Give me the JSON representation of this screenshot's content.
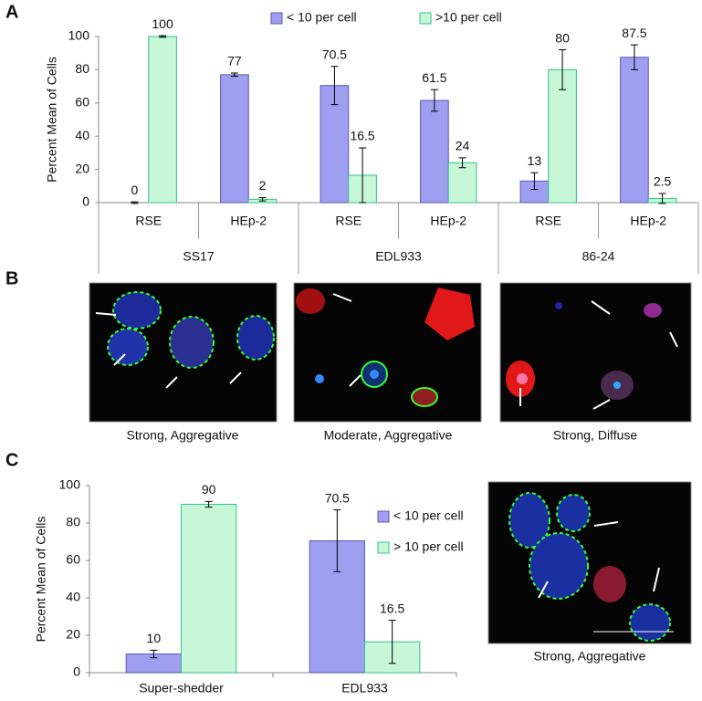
{
  "panel_labels": [
    "A",
    "B",
    "C"
  ],
  "image_captions": [
    "Strong, Aggregative",
    "Moderate, Aggregative",
    "Strong, Diffuse",
    "Strong, Aggregative"
  ],
  "chart_data": [
    {
      "type": "bar",
      "y_label": "Percent Mean of Cells",
      "categories": [
        "RSE",
        "HEp-2",
        "RSE",
        "HEp-2",
        "RSE",
        "HEp-2"
      ],
      "groups": [
        "SS17",
        "EDL933",
        "86-24"
      ],
      "series": [
        {
          "name": "< 10 per cell",
          "color": "#9f9ff2",
          "edge_color": "#5a5ab0",
          "values": [
            0,
            77,
            70.5,
            61.5,
            13,
            87.5
          ],
          "errors": [
            0.5,
            1,
            11.5,
            6.5,
            5,
            7.5
          ]
        },
        {
          "name": ">10 per cell",
          "color": "#c8f7d8",
          "edge_color": "#2fc48a",
          "values": [
            100,
            2,
            16.5,
            24,
            80,
            2.5
          ],
          "errors": [
            0.5,
            1,
            16.5,
            3,
            12,
            3
          ]
        }
      ],
      "ylim": [
        0,
        100
      ],
      "yticks": [
        0,
        20,
        40,
        60,
        80,
        100
      ],
      "legend": "top"
    },
    {
      "type": "bar",
      "y_label": "Percent Mean of Cells",
      "categories": [
        "Super-shedder",
        "EDL933"
      ],
      "series": [
        {
          "name": "< 10 per cell",
          "color": "#9f9ff2",
          "edge_color": "#5a5ab0",
          "values": [
            10,
            70.5
          ],
          "errors": [
            2,
            16.5
          ]
        },
        {
          "name": "> 10 per cell",
          "color": "#c8f7d8",
          "edge_color": "#2fc48a",
          "values": [
            90,
            16.5
          ],
          "errors": [
            1.5,
            11.5
          ]
        }
      ],
      "ylim": [
        0,
        100
      ],
      "yticks": [
        0,
        20,
        40,
        60,
        80,
        100
      ],
      "legend": "right"
    }
  ]
}
